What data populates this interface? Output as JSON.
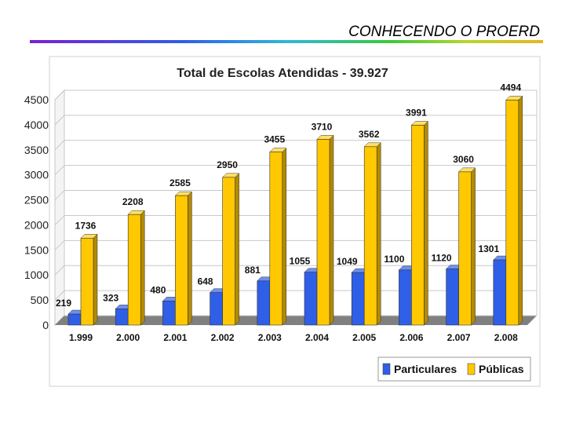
{
  "slide": {
    "title": "CONHECENDO O PROERD"
  },
  "colors": {
    "particulares": "#2f5fe6",
    "particulares_top": "#6e8ff2",
    "particulares_side": "#1a3a9c",
    "publicas": "#ffc800",
    "publicas_top": "#ffe066",
    "publicas_side": "#b38a00"
  },
  "chart_data": {
    "type": "bar",
    "title": "Total de Escolas Atendidas - 39.927",
    "categories": [
      "1.999",
      "2.000",
      "2.001",
      "2.002",
      "2.003",
      "2.004",
      "2.005",
      "2.006",
      "2.007",
      "2.008"
    ],
    "series": [
      {
        "name": "Particulares",
        "values": [
          219,
          323,
          480,
          648,
          881,
          1055,
          1049,
          1100,
          1120,
          1301
        ]
      },
      {
        "name": "Públicas",
        "values": [
          1736,
          2208,
          2585,
          2950,
          3455,
          3710,
          3562,
          3991,
          3060,
          4494
        ]
      }
    ],
    "ylim": [
      0,
      4500
    ],
    "yticks": [
      0,
      500,
      1000,
      1500,
      2000,
      2500,
      3000,
      3500,
      4000,
      4500
    ],
    "xlabel": "",
    "ylabel": "",
    "grid": true,
    "legend": "bottom-right"
  }
}
